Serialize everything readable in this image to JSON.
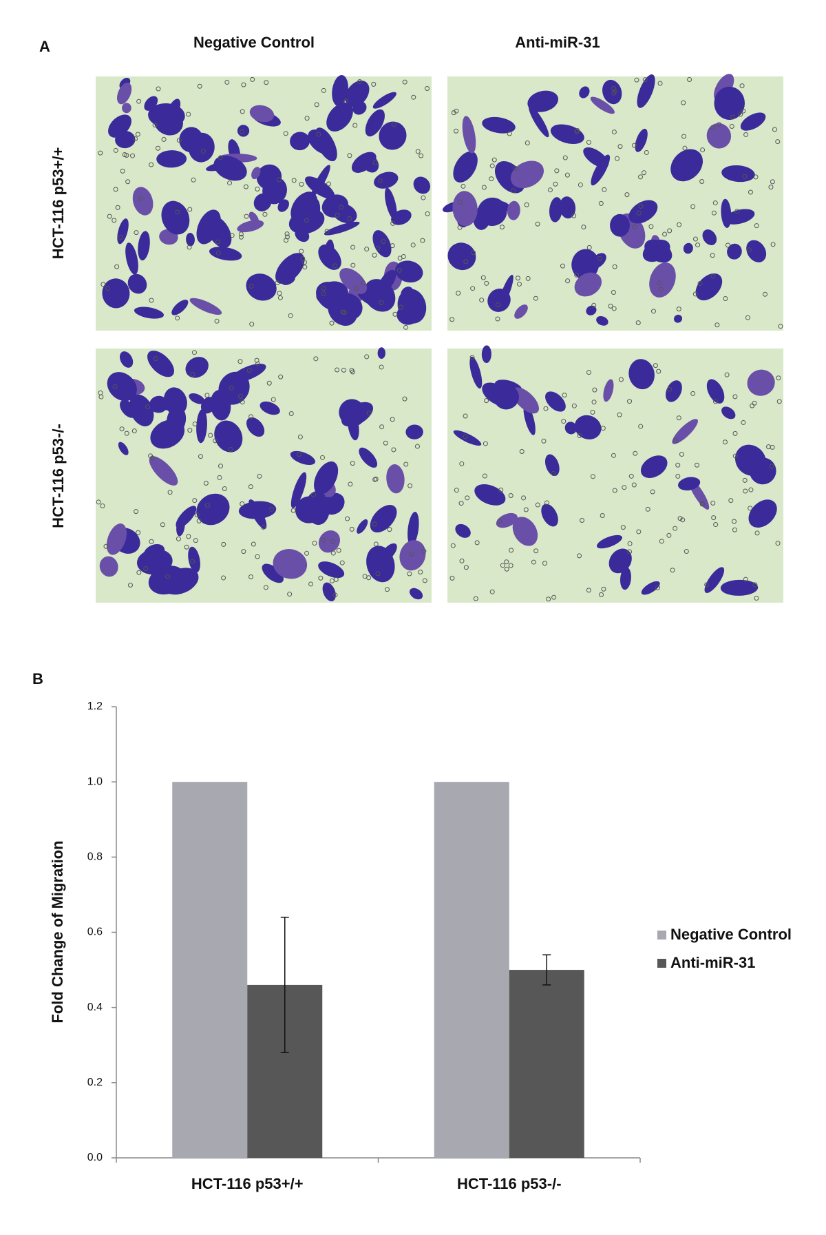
{
  "panel_a": {
    "label": "A",
    "columns": [
      "Negative Control",
      "Anti-miR-31"
    ],
    "rows": [
      "HCT-116 p53+/+",
      "HCT-116 p53-/-"
    ]
  },
  "chart_data": {
    "type": "bar",
    "panel_label": "B",
    "categories": [
      "HCT-116 p53+/+",
      "HCT-116 p53-/-"
    ],
    "series": [
      {
        "name": "Negative Control",
        "color": "#a8a8b0",
        "values": [
          1.0,
          1.0
        ]
      },
      {
        "name": "Anti-miR-31",
        "color": "#575757",
        "values": [
          0.46,
          0.5
        ],
        "errors": [
          0.18,
          0.04
        ]
      }
    ],
    "ylabel": "Fold Change of Migration",
    "ylim": [
      0,
      1.2
    ],
    "yticks": [
      {
        "value": 0,
        "label": "0.0"
      },
      {
        "value": 0.2,
        "label": "0.2"
      },
      {
        "value": 0.4,
        "label": "0.4"
      },
      {
        "value": 0.6,
        "label": "0.6"
      },
      {
        "value": 0.8,
        "label": "0.8"
      },
      {
        "value": 1.0,
        "label": "1.0"
      },
      {
        "value": 1.2,
        "label": "1.2"
      }
    ],
    "legend": "right"
  }
}
